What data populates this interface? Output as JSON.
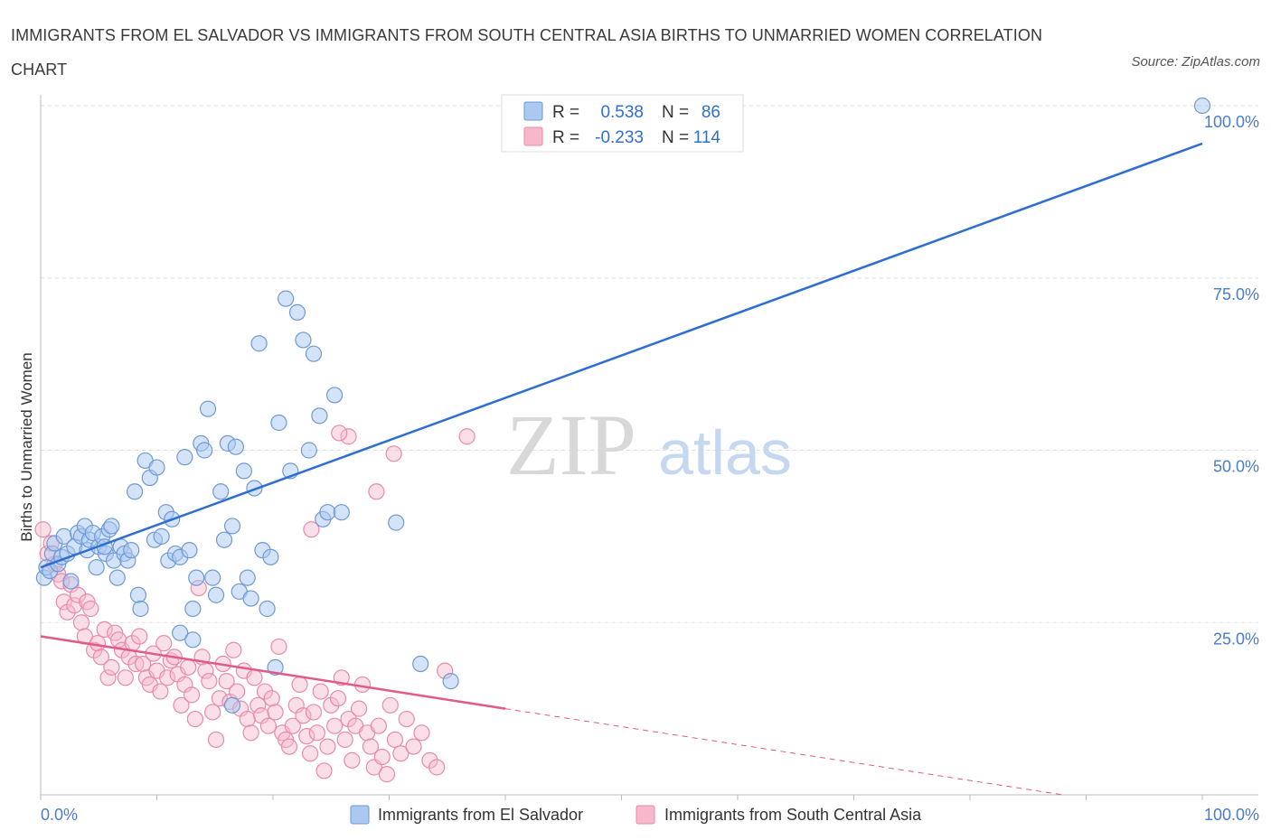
{
  "title": "IMMIGRANTS FROM EL SALVADOR VS IMMIGRANTS FROM SOUTH CENTRAL ASIA BIRTHS TO UNMARRIED WOMEN CORRELATION CHART",
  "source": "Source: ZipAtlas.com",
  "watermark": {
    "zip": "ZIP",
    "atlas": "atlas"
  },
  "legend": {
    "r_label": "R =",
    "n_label": "N =",
    "rows": [
      {
        "r": "0.538",
        "n": "86",
        "color": "#4a7cd0"
      },
      {
        "r": "-0.233",
        "n": "114",
        "color": "#e05a8a"
      }
    ]
  },
  "bottom_legend": [
    "Immigrants from El Salvador",
    "Immigrants from South Central Asia"
  ],
  "colors": {
    "blue_fill": "#aac8f0",
    "blue_stroke": "#6e9ad6",
    "blue_line": "#2f6fd0",
    "pink_fill": "#f7b8cc",
    "pink_stroke": "#e98aaa",
    "pink_line": "#e05a8a",
    "grid": "#dddddd",
    "tick_label": "#4a7cd0"
  },
  "chart_data": {
    "type": "scatter",
    "title": "IMMIGRANTS FROM EL SALVADOR VS IMMIGRANTS FROM SOUTH CENTRAL ASIA BIRTHS TO UNMARRIED WOMEN CORRELATION CHART",
    "xlabel": "",
    "ylabel": "Births to Unmarried Women",
    "xlim": [
      0,
      100
    ],
    "ylim": [
      0,
      100
    ],
    "x_tick_labels": [
      "0.0%",
      "100.0%"
    ],
    "y_tick_labels": [
      "25.0%",
      "50.0%",
      "75.0%",
      "100.0%"
    ],
    "y_ticks": [
      25,
      50,
      75,
      100
    ],
    "grid": true,
    "legend_position": "top-center",
    "series": [
      {
        "name": "Immigrants from El Salvador",
        "r": 0.538,
        "n": 86,
        "trend": {
          "x": [
            0,
            100
          ],
          "y": [
            33,
            94.5
          ]
        },
        "points": [
          [
            0.3,
            31.5
          ],
          [
            0.5,
            33
          ],
          [
            0.8,
            32.5
          ],
          [
            1,
            35
          ],
          [
            1.2,
            36.5
          ],
          [
            1.5,
            33.5
          ],
          [
            1.8,
            34.5
          ],
          [
            2,
            37.5
          ],
          [
            2.3,
            35
          ],
          [
            2.6,
            31
          ],
          [
            2.9,
            36
          ],
          [
            3.2,
            38
          ],
          [
            3.5,
            37.5
          ],
          [
            3.8,
            39
          ],
          [
            4,
            35.5
          ],
          [
            4.2,
            37
          ],
          [
            4.5,
            38
          ],
          [
            4.8,
            33
          ],
          [
            5,
            36
          ],
          [
            5.3,
            37.5
          ],
          [
            5.6,
            35
          ],
          [
            5.9,
            38.5
          ],
          [
            6.1,
            39
          ],
          [
            6.3,
            34
          ],
          [
            6.6,
            31.5
          ],
          [
            6.9,
            36
          ],
          [
            7.2,
            35
          ],
          [
            7.5,
            34
          ],
          [
            7.8,
            35.5
          ],
          [
            8.1,
            44
          ],
          [
            8.4,
            29
          ],
          [
            8.6,
            27
          ],
          [
            9,
            48.5
          ],
          [
            9.4,
            46
          ],
          [
            9.8,
            37
          ],
          [
            10,
            47.5
          ],
          [
            10.4,
            37.5
          ],
          [
            10.8,
            41
          ],
          [
            11,
            34
          ],
          [
            11.3,
            40
          ],
          [
            11.6,
            35
          ],
          [
            12,
            34.5
          ],
          [
            12.4,
            49
          ],
          [
            12.8,
            35.5
          ],
          [
            13.1,
            27
          ],
          [
            13.4,
            31.5
          ],
          [
            13.8,
            51
          ],
          [
            14.1,
            50
          ],
          [
            14.4,
            56
          ],
          [
            14.8,
            31.5
          ],
          [
            15.1,
            29
          ],
          [
            15.5,
            44
          ],
          [
            15.8,
            37
          ],
          [
            16.1,
            51
          ],
          [
            16.5,
            39
          ],
          [
            16.8,
            50.5
          ],
          [
            17.1,
            29.5
          ],
          [
            17.5,
            47
          ],
          [
            17.8,
            31.5
          ],
          [
            18.1,
            28.5
          ],
          [
            18.4,
            44.5
          ],
          [
            18.8,
            65.5
          ],
          [
            19.1,
            35.5
          ],
          [
            19.5,
            27
          ],
          [
            19.8,
            34.5
          ],
          [
            20.2,
            18.5
          ],
          [
            16.5,
            13
          ],
          [
            20.5,
            54
          ],
          [
            21.1,
            72
          ],
          [
            21.5,
            47
          ],
          [
            22.1,
            70
          ],
          [
            22.6,
            66
          ],
          [
            23.1,
            50
          ],
          [
            23.5,
            64
          ],
          [
            24,
            55
          ],
          [
            24.3,
            40
          ],
          [
            24.7,
            41
          ],
          [
            25.3,
            58
          ],
          [
            25.9,
            41
          ],
          [
            30.6,
            39.5
          ],
          [
            32.7,
            19
          ],
          [
            35.3,
            16.5
          ],
          [
            12,
            23.5
          ],
          [
            13.1,
            22.5
          ],
          [
            5.5,
            36
          ],
          [
            100,
            100
          ]
        ]
      },
      {
        "name": "Immigrants from South Central Asia",
        "r": -0.233,
        "n": 114,
        "trend": {
          "x": [
            0,
            40
          ],
          "y": [
            23,
            12.5
          ],
          "dashed_x": [
            40,
            88
          ],
          "dashed_y": [
            12.5,
            0
          ]
        },
        "points": [
          [
            0.2,
            38.5
          ],
          [
            0.6,
            35
          ],
          [
            0.9,
            36.5
          ],
          [
            1.2,
            33.5
          ],
          [
            1.5,
            32
          ],
          [
            1.8,
            31
          ],
          [
            2,
            28
          ],
          [
            2.3,
            26.5
          ],
          [
            2.6,
            30.5
          ],
          [
            2.9,
            27.5
          ],
          [
            3.2,
            29
          ],
          [
            3.5,
            25
          ],
          [
            3.8,
            23
          ],
          [
            4,
            28
          ],
          [
            4.3,
            27
          ],
          [
            4.6,
            21
          ],
          [
            4.9,
            22
          ],
          [
            5.2,
            20
          ],
          [
            5.5,
            24
          ],
          [
            5.8,
            17
          ],
          [
            6.1,
            18.5
          ],
          [
            6.4,
            23.5
          ],
          [
            6.7,
            22.5
          ],
          [
            7,
            21
          ],
          [
            7.3,
            17
          ],
          [
            7.6,
            20
          ],
          [
            7.9,
            22
          ],
          [
            8.2,
            19
          ],
          [
            8.5,
            23
          ],
          [
            8.8,
            19
          ],
          [
            9.1,
            17
          ],
          [
            9.4,
            16
          ],
          [
            9.7,
            20.5
          ],
          [
            10,
            18
          ],
          [
            10.3,
            15
          ],
          [
            10.6,
            22
          ],
          [
            10.9,
            17
          ],
          [
            11.2,
            19.5
          ],
          [
            11.5,
            20
          ],
          [
            11.8,
            17.5
          ],
          [
            12.1,
            13
          ],
          [
            12.4,
            16
          ],
          [
            12.7,
            18.5
          ],
          [
            13,
            14.5
          ],
          [
            13.3,
            11
          ],
          [
            13.6,
            30
          ],
          [
            13.9,
            20
          ],
          [
            14.2,
            18
          ],
          [
            14.5,
            16.5
          ],
          [
            14.8,
            12
          ],
          [
            15.1,
            8
          ],
          [
            15.4,
            14
          ],
          [
            15.7,
            19
          ],
          [
            16,
            16.5
          ],
          [
            16.3,
            13.5
          ],
          [
            16.6,
            21
          ],
          [
            16.9,
            15
          ],
          [
            17.2,
            12.5
          ],
          [
            17.5,
            18
          ],
          [
            17.8,
            11
          ],
          [
            18.1,
            9
          ],
          [
            18.4,
            17
          ],
          [
            18.7,
            13
          ],
          [
            19,
            11.5
          ],
          [
            19.3,
            15
          ],
          [
            19.6,
            10
          ],
          [
            19.9,
            14
          ],
          [
            20.2,
            12
          ],
          [
            20.5,
            21.5
          ],
          [
            20.8,
            9
          ],
          [
            21.1,
            8
          ],
          [
            21.4,
            7
          ],
          [
            21.7,
            10
          ],
          [
            22,
            13
          ],
          [
            22.3,
            16
          ],
          [
            22.6,
            11.5
          ],
          [
            22.9,
            8.5
          ],
          [
            23.2,
            6
          ],
          [
            23.5,
            12
          ],
          [
            23.8,
            9
          ],
          [
            24.1,
            15
          ],
          [
            24.4,
            3.5
          ],
          [
            24.7,
            7
          ],
          [
            25,
            13
          ],
          [
            25.3,
            10
          ],
          [
            25.6,
            14
          ],
          [
            25.9,
            17
          ],
          [
            26.2,
            8
          ],
          [
            26.5,
            11
          ],
          [
            26.8,
            5
          ],
          [
            27.1,
            10
          ],
          [
            27.4,
            12.5
          ],
          [
            27.7,
            16
          ],
          [
            28.1,
            9
          ],
          [
            28.4,
            7
          ],
          [
            28.7,
            4
          ],
          [
            29.1,
            10
          ],
          [
            29.4,
            5.5
          ],
          [
            29.8,
            3
          ],
          [
            30.1,
            13
          ],
          [
            30.5,
            8
          ],
          [
            31,
            6
          ],
          [
            31.5,
            11
          ],
          [
            32.1,
            7
          ],
          [
            32.8,
            9
          ],
          [
            33.5,
            5
          ],
          [
            34.1,
            4
          ],
          [
            34.8,
            18
          ],
          [
            26.5,
            52
          ],
          [
            25.7,
            52.5
          ],
          [
            30.4,
            49.5
          ],
          [
            36.7,
            52
          ],
          [
            28.9,
            44
          ],
          [
            23.3,
            38.5
          ]
        ]
      }
    ]
  }
}
